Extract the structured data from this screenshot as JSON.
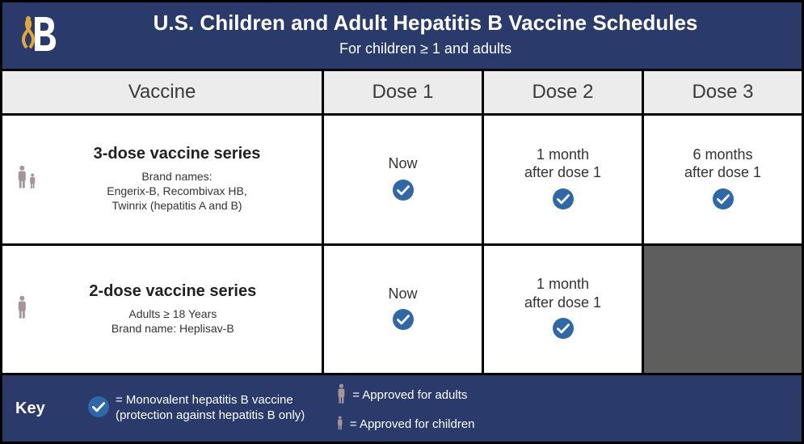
{
  "colors": {
    "header_bg": "#293a6b",
    "head_cell_bg": "#ececec",
    "na_bg": "#5e5e5e",
    "check_fill": "#2e68a7",
    "person_fill": "#a5949a",
    "logo_gold": "#e0a83a",
    "border": "#000000"
  },
  "header": {
    "title": "U.S. Children and Adult Hepatitis B Vaccine Schedules",
    "subtitle": "For children ≥ 1 and adults"
  },
  "columns": {
    "vaccine": "Vaccine",
    "dose1": "Dose 1",
    "dose2": "Dose 2",
    "dose3": "Dose 3"
  },
  "rows": [
    {
      "for_adults": true,
      "for_children": true,
      "series_title": "3-dose vaccine series",
      "sub_lines": [
        "Brand names:",
        "Engerix-B, Recombivax HB,",
        "Twinrix (hepatitis A and B)"
      ],
      "doses": [
        {
          "text": "Now",
          "check": true
        },
        {
          "text": "1 month\nafter dose 1",
          "check": true
        },
        {
          "text": "6 months\nafter dose 1",
          "check": true
        }
      ]
    },
    {
      "for_adults": true,
      "for_children": false,
      "series_title": "2-dose vaccine series",
      "sub_lines": [
        "Adults ≥ 18 Years",
        "Brand name: Heplisav-B"
      ],
      "doses": [
        {
          "text": "Now",
          "check": true
        },
        {
          "text": "1 month\nafter dose 1",
          "check": true
        },
        {
          "na": true
        }
      ]
    }
  ],
  "key": {
    "label": "Key",
    "check_text": "= Monovalent hepatitis B vaccine\n(protection against hepatitis B only)",
    "adult_text": "= Approved for adults",
    "child_text": "= Approved for children"
  }
}
